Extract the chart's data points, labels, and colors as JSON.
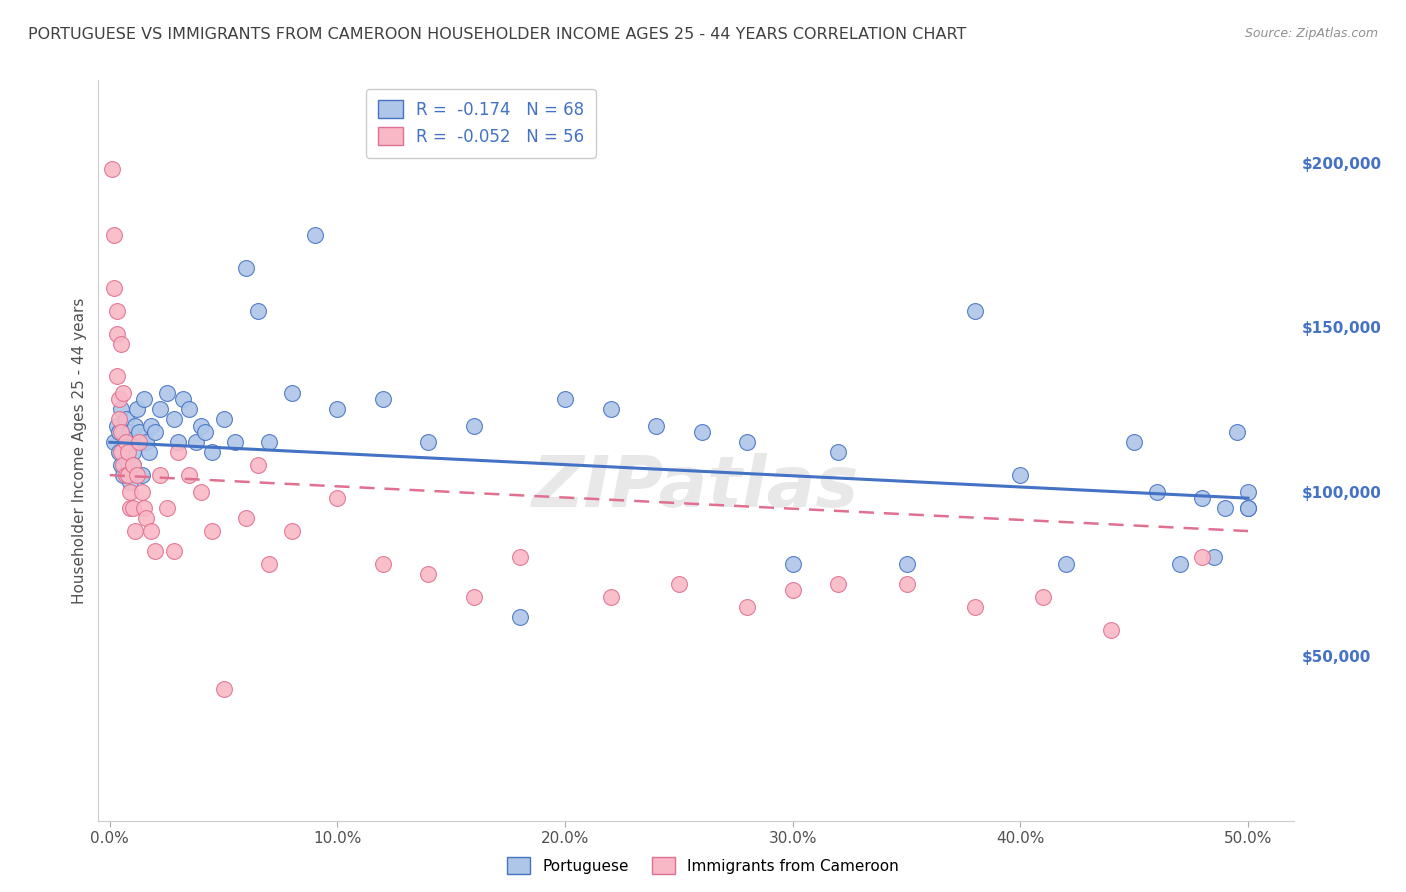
{
  "title": "PORTUGUESE VS IMMIGRANTS FROM CAMEROON HOUSEHOLDER INCOME AGES 25 - 44 YEARS CORRELATION CHART",
  "source": "Source: ZipAtlas.com",
  "ylabel": "Householder Income Ages 25 - 44 years",
  "xlabel_ticks": [
    "0.0%",
    "10.0%",
    "20.0%",
    "30.0%",
    "40.0%",
    "50.0%"
  ],
  "xlabel_vals": [
    0.0,
    0.1,
    0.2,
    0.3,
    0.4,
    0.5
  ],
  "ylabel_ticks": [
    "$50,000",
    "$100,000",
    "$150,000",
    "$200,000"
  ],
  "ylabel_vals": [
    50000,
    100000,
    150000,
    200000
  ],
  "legend_r_blue": "R =  -0.174",
  "legend_n_blue": "N = 68",
  "legend_r_pink": "R =  -0.052",
  "legend_n_pink": "N = 56",
  "watermark": "ZIPatlas",
  "blue_color": "#aec6e8",
  "pink_color": "#f9b8c5",
  "line_blue": "#4472c4",
  "line_pink": "#e07090",
  "background_color": "#ffffff",
  "grid_color": "#d0d0d0",
  "title_color": "#404040",
  "tick_label_color_right": "#4472c4",
  "blue_scatter_x": [
    0.002,
    0.003,
    0.004,
    0.004,
    0.005,
    0.005,
    0.006,
    0.006,
    0.007,
    0.007,
    0.008,
    0.008,
    0.009,
    0.009,
    0.01,
    0.01,
    0.011,
    0.012,
    0.013,
    0.014,
    0.015,
    0.016,
    0.017,
    0.018,
    0.02,
    0.022,
    0.025,
    0.028,
    0.03,
    0.032,
    0.035,
    0.038,
    0.04,
    0.042,
    0.045,
    0.05,
    0.055,
    0.06,
    0.065,
    0.07,
    0.08,
    0.09,
    0.1,
    0.12,
    0.14,
    0.16,
    0.18,
    0.2,
    0.22,
    0.24,
    0.26,
    0.28,
    0.3,
    0.32,
    0.35,
    0.38,
    0.4,
    0.42,
    0.45,
    0.46,
    0.47,
    0.48,
    0.485,
    0.49,
    0.495,
    0.5,
    0.5,
    0.5
  ],
  "blue_scatter_y": [
    115000,
    120000,
    112000,
    118000,
    108000,
    125000,
    105000,
    118000,
    110000,
    122000,
    115000,
    108000,
    103000,
    118000,
    112000,
    108000,
    120000,
    125000,
    118000,
    105000,
    128000,
    115000,
    112000,
    120000,
    118000,
    125000,
    130000,
    122000,
    115000,
    128000,
    125000,
    115000,
    120000,
    118000,
    112000,
    122000,
    115000,
    168000,
    155000,
    115000,
    130000,
    178000,
    125000,
    128000,
    115000,
    120000,
    62000,
    128000,
    125000,
    120000,
    118000,
    115000,
    78000,
    112000,
    78000,
    155000,
    105000,
    78000,
    115000,
    100000,
    78000,
    98000,
    80000,
    95000,
    118000,
    100000,
    95000,
    95000
  ],
  "pink_scatter_x": [
    0.001,
    0.002,
    0.002,
    0.003,
    0.003,
    0.003,
    0.004,
    0.004,
    0.005,
    0.005,
    0.005,
    0.006,
    0.006,
    0.007,
    0.007,
    0.008,
    0.008,
    0.009,
    0.009,
    0.01,
    0.01,
    0.011,
    0.012,
    0.013,
    0.014,
    0.015,
    0.016,
    0.018,
    0.02,
    0.022,
    0.025,
    0.028,
    0.03,
    0.035,
    0.04,
    0.045,
    0.05,
    0.06,
    0.065,
    0.07,
    0.08,
    0.1,
    0.12,
    0.14,
    0.16,
    0.18,
    0.22,
    0.25,
    0.28,
    0.3,
    0.32,
    0.35,
    0.38,
    0.41,
    0.44,
    0.48
  ],
  "pink_scatter_y": [
    198000,
    178000,
    162000,
    155000,
    148000,
    135000,
    128000,
    122000,
    145000,
    118000,
    112000,
    130000,
    108000,
    105000,
    115000,
    112000,
    105000,
    100000,
    95000,
    108000,
    95000,
    88000,
    105000,
    115000,
    100000,
    95000,
    92000,
    88000,
    82000,
    105000,
    95000,
    82000,
    112000,
    105000,
    100000,
    88000,
    40000,
    92000,
    108000,
    78000,
    88000,
    98000,
    78000,
    75000,
    68000,
    80000,
    68000,
    72000,
    65000,
    70000,
    72000,
    72000,
    65000,
    68000,
    58000,
    80000
  ]
}
